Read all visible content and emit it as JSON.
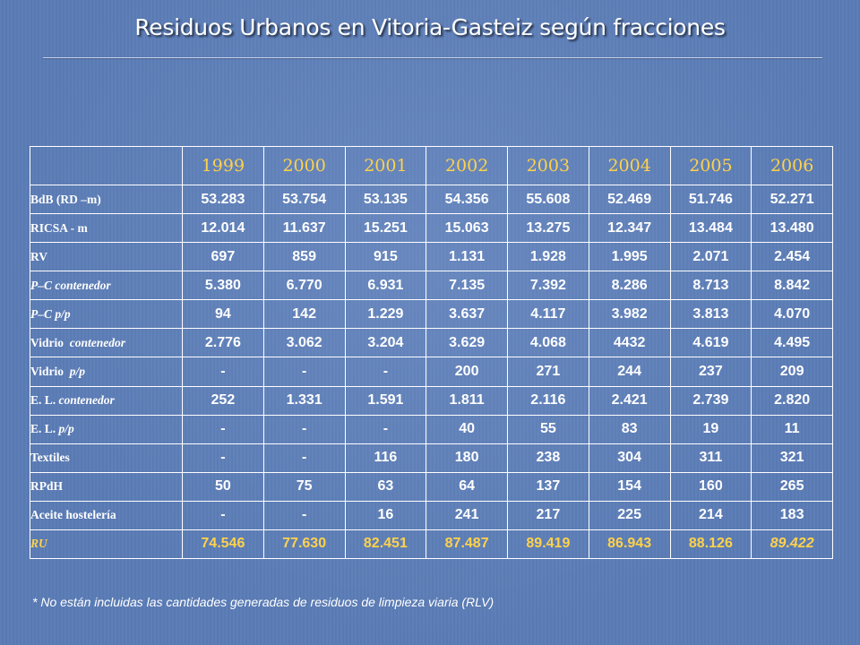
{
  "slide": {
    "title": "Residuos Urbanos en Vitoria-Gasteiz según fracciones",
    "footnote": "* No están incluidas las cantidades generadas de residuos de limpieza viaria (RLV)"
  },
  "table": {
    "years": [
      "1999",
      "2000",
      "2001",
      "2002",
      "2003",
      "2004",
      "2005",
      "2006"
    ],
    "rows": [
      {
        "label": "BdB (RD –m)",
        "values": [
          "53.283",
          "53.754",
          "53.135",
          "54.356",
          "55.608",
          "52.469",
          "51.746",
          "52.271"
        ]
      },
      {
        "label": "RICSA - m",
        "values": [
          "12.014",
          "11.637",
          "15.251",
          "15.063",
          "13.275",
          "12.347",
          "13.484",
          "13.480"
        ]
      },
      {
        "label": "RV",
        "values": [
          "697",
          "859",
          "915",
          "1.131",
          "1.928",
          "1.995",
          "2.071",
          "2.454"
        ]
      },
      {
        "label": "P–C contenedor",
        "values": [
          "5.380",
          "6.770",
          "6.931",
          "7.135",
          "7.392",
          "8.286",
          "8.713",
          "8.842"
        ]
      },
      {
        "label": "P–C p/p",
        "values": [
          "94",
          "142",
          "1.229",
          "3.637",
          "4.117",
          "3.982",
          "3.813",
          "4.070"
        ]
      },
      {
        "label_a": "Vidrio",
        "label_b": "contenedor",
        "values": [
          "2.776",
          "3.062",
          "3.204",
          "3.629",
          "4.068",
          "4432",
          "4.619",
          "4.495"
        ]
      },
      {
        "label_a": "Vidrio",
        "label_b": "p/p",
        "values": [
          "-",
          "-",
          "-",
          "200",
          "271",
          "244",
          "237",
          "209"
        ]
      },
      {
        "label_a": "E. L.",
        "label_b": "contenedor",
        "values": [
          "252",
          "1.331",
          "1.591",
          "1.811",
          "2.116",
          "2.421",
          "2.739",
          "2.820"
        ]
      },
      {
        "label_a": "E. L.",
        "label_b": "p/p",
        "values": [
          "-",
          "-",
          "-",
          "40",
          "55",
          "83",
          "19",
          "11"
        ]
      },
      {
        "label": "Textiles",
        "values": [
          "-",
          "-",
          "116",
          "180",
          "238",
          "304",
          "311",
          "321"
        ]
      },
      {
        "label": "RPdH",
        "values": [
          "50",
          "75",
          "63",
          "64",
          "137",
          "154",
          "160",
          "265"
        ]
      },
      {
        "label": "Aceite hostelería",
        "values": [
          "-",
          "-",
          "16",
          "241",
          "217",
          "225",
          "214",
          "183"
        ]
      },
      {
        "label": "RU",
        "values": [
          "74.546",
          "77.630",
          "82.451",
          "87.487",
          "89.419",
          "86.943",
          "88.126",
          "89.422"
        ]
      }
    ]
  },
  "colors": {
    "background": "#5a7bb5",
    "header_text": "#ffd24a",
    "total_row_text": "#ffd24a",
    "body_text": "#ffffff"
  }
}
